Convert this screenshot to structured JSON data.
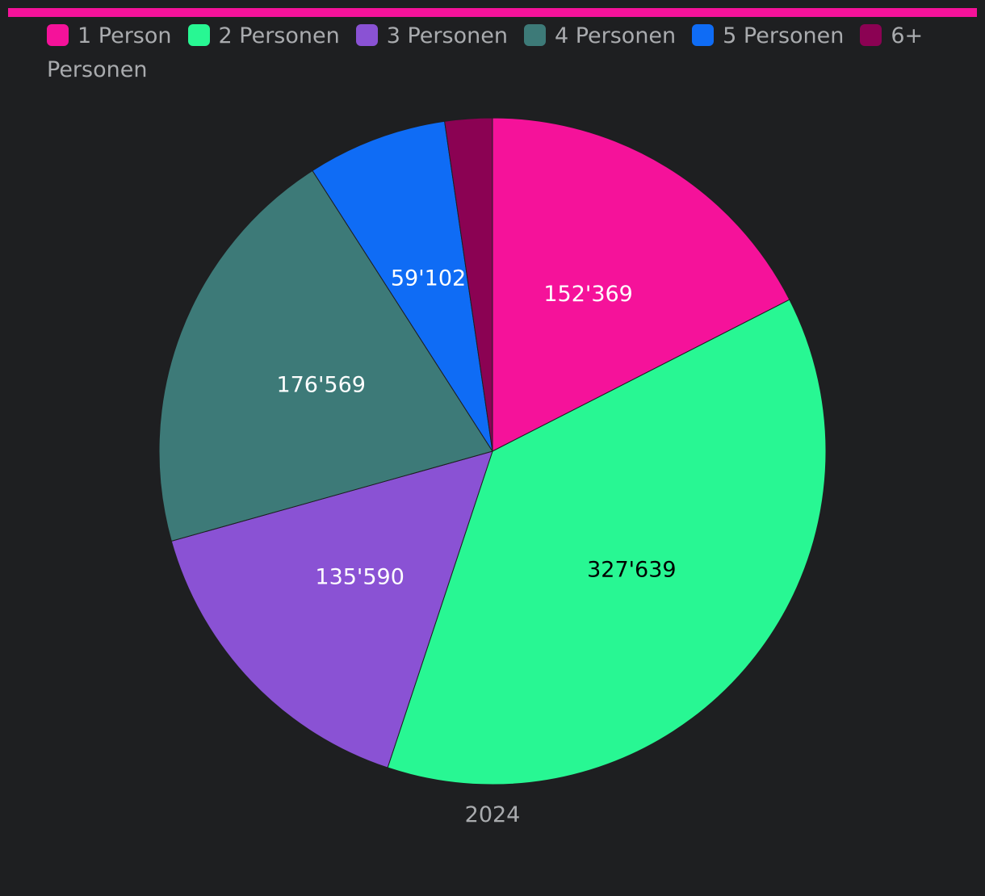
{
  "colors": {
    "background": "#1e1f21",
    "accent": "#f5129a",
    "legend_text": "#a9abae"
  },
  "chart_data": {
    "type": "pie",
    "category": "2024",
    "slices": [
      {
        "label": "1 Person",
        "value": 152369,
        "display": "152'369",
        "color": "#f5129a",
        "label_color": "#ffffff"
      },
      {
        "label": "2 Personen",
        "value": 327639,
        "display": "327'639",
        "color": "#28f793",
        "label_color": "#000000"
      },
      {
        "label": "3 Personen",
        "value": 135590,
        "display": "135'590",
        "color": "#8a52d4",
        "label_color": "#ffffff"
      },
      {
        "label": "4 Personen",
        "value": 176569,
        "display": "176'569",
        "color": "#3d7a78",
        "label_color": "#ffffff"
      },
      {
        "label": "5 Personen",
        "value": 59102,
        "display": "59'102",
        "color": "#0f6cf5",
        "label_color": "#ffffff"
      },
      {
        "label": "6+ Personen",
        "value": 20000,
        "display": "",
        "color": "#8b0253",
        "label_color": "#ffffff"
      }
    ],
    "legend_position": "top-left"
  }
}
